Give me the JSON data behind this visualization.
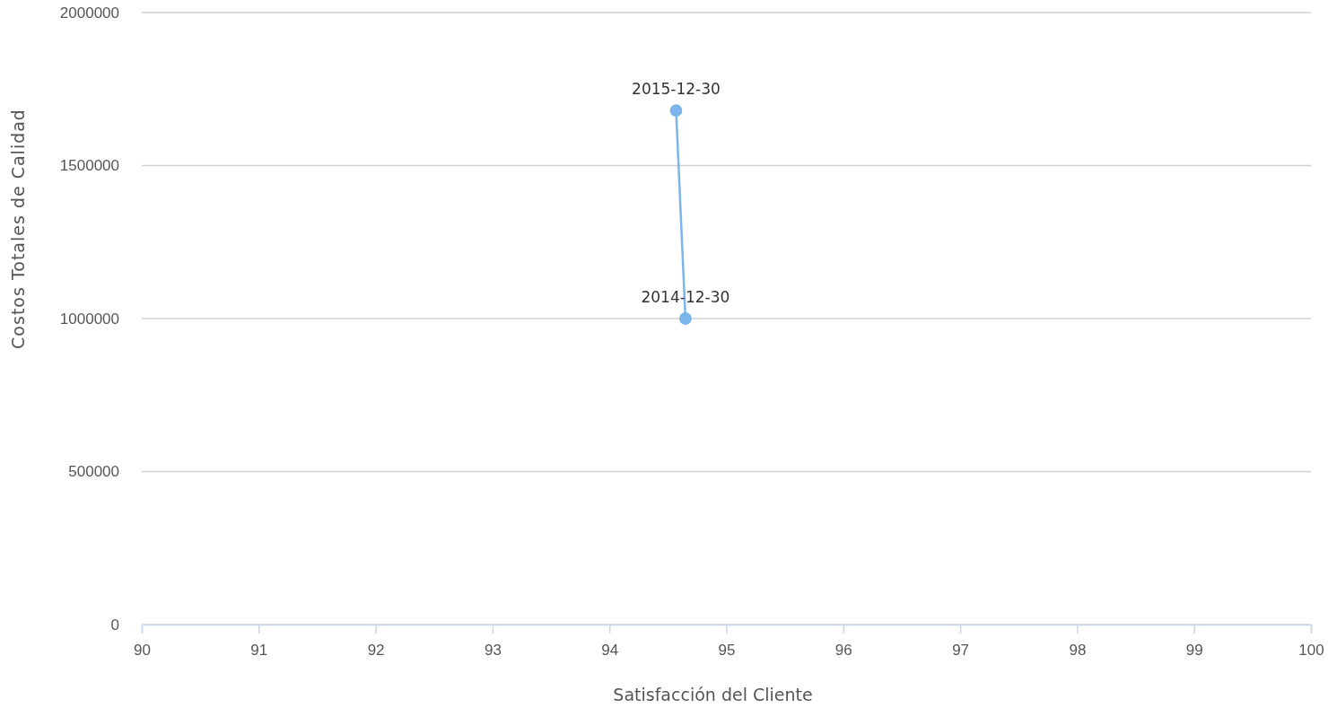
{
  "chart_data": {
    "type": "line",
    "xlabel": "Satisfacción del Cliente",
    "ylabel": "Costos Totales de Calidad",
    "xlim": [
      90,
      100
    ],
    "xticks": [
      90,
      91,
      92,
      93,
      94,
      95,
      96,
      97,
      98,
      99,
      100
    ],
    "ylim": [
      0,
      2000000
    ],
    "yticks": [
      0,
      500000,
      1000000,
      1500000,
      2000000
    ],
    "grid": "y",
    "marker": "circle",
    "line_style": "solid",
    "series": [
      {
        "color": "#7cb5ec",
        "x": [
          94.65,
          94.57
        ],
        "values": [
          1000000,
          1680000
        ]
      }
    ],
    "annotations": [
      {
        "text": "2014-12-30",
        "x": 94.65,
        "y": 1000000
      },
      {
        "text": "2015-12-30",
        "x": 94.57,
        "y": 1680000
      }
    ]
  }
}
